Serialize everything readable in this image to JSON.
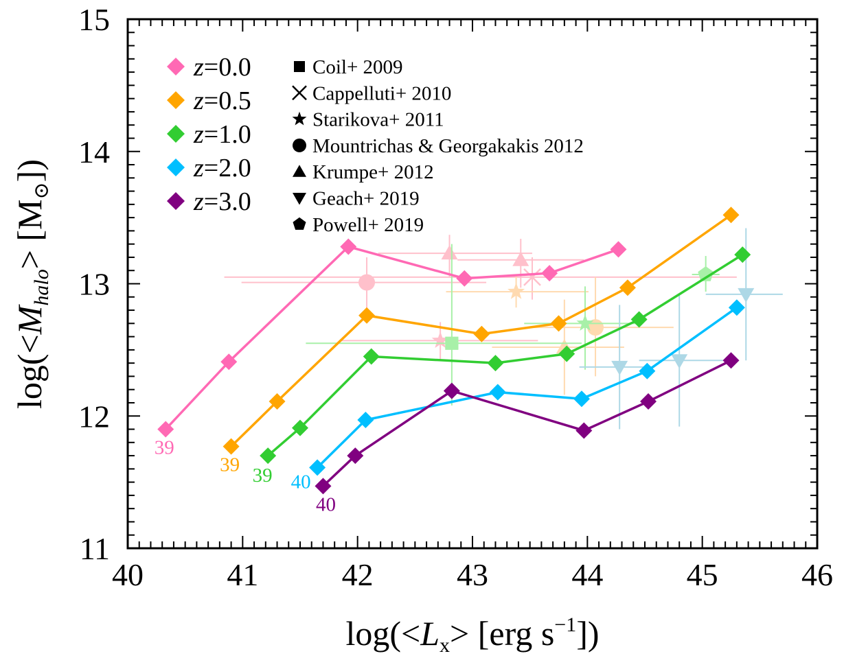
{
  "chart_data": {
    "type": "line",
    "xlabel": {
      "pre": "log(<",
      "var": "L",
      "sub": "x",
      "post1": "> [erg s",
      "sup": "−1",
      "post2": "])"
    },
    "ylabel": {
      "pre": "log(<",
      "var": "M",
      "sub": "halo",
      "post1": "> [M",
      "sun": "⊙",
      "post2": "])"
    },
    "xlim": [
      40,
      46
    ],
    "ylim": [
      11,
      15
    ],
    "xticks": [
      "40",
      "41",
      "42",
      "43",
      "44",
      "45",
      "46"
    ],
    "yticks": [
      "11",
      "12",
      "13",
      "14",
      "15"
    ],
    "series": [
      {
        "name": "z=0.0",
        "z_label": "z",
        "z_value": "=0.0",
        "color": "#FF69B4",
        "faint": "#FFC0CB",
        "start_label": "39",
        "x": [
          40.33,
          40.88,
          41.92,
          42.93,
          43.67,
          44.27
        ],
        "y": [
          11.9,
          12.41,
          13.28,
          13.04,
          13.08,
          13.26
        ]
      },
      {
        "name": "z=0.5",
        "z_label": "z",
        "z_value": "=0.5",
        "color": "#FFA500",
        "faint": "#FFDAB0",
        "start_label": "39",
        "x": [
          40.9,
          41.3,
          42.08,
          43.08,
          43.75,
          44.35,
          45.25
        ],
        "y": [
          11.77,
          12.11,
          12.76,
          12.62,
          12.7,
          12.97,
          13.52
        ]
      },
      {
        "name": "z=1.0",
        "z_label": "z",
        "z_value": "=1.0",
        "color": "#32CD32",
        "faint": "#A8F0A8",
        "start_label": "39",
        "x": [
          41.22,
          41.5,
          42.12,
          43.2,
          43.82,
          44.45,
          45.35
        ],
        "y": [
          11.7,
          11.91,
          12.45,
          12.4,
          12.47,
          12.73,
          13.22
        ]
      },
      {
        "name": "z=2.0",
        "z_label": "z",
        "z_value": "=2.0",
        "color": "#00BFFF",
        "faint": "#ADD8E6",
        "start_label": "40",
        "x": [
          41.65,
          42.07,
          43.22,
          43.95,
          44.52,
          45.3
        ],
        "y": [
          11.61,
          11.97,
          12.18,
          12.13,
          12.34,
          12.82
        ]
      },
      {
        "name": "z=3.0",
        "z_label": "z",
        "z_value": "=3.0",
        "color": "#800080",
        "faint": "#D8A8D8",
        "start_label": "40",
        "x": [
          41.7,
          41.98,
          42.82,
          43.97,
          44.53,
          45.25
        ],
        "y": [
          11.47,
          11.7,
          12.19,
          11.89,
          12.11,
          12.42
        ]
      }
    ],
    "references": [
      {
        "name": "Coil+ 2009",
        "marker": "square"
      },
      {
        "name": "Cappelluti+ 2010",
        "marker": "cross"
      },
      {
        "name": "Starikova+ 2011",
        "marker": "star"
      },
      {
        "name": "Mountrichas & Georgakakis 2012",
        "marker": "circle"
      },
      {
        "name": "Krumpe+ 2012",
        "marker": "triangle-up"
      },
      {
        "name": "Geach+ 2019",
        "marker": "triangle-down"
      },
      {
        "name": "Powell+ 2019",
        "marker": "pentagon"
      }
    ],
    "observations": [
      {
        "marker": "circle",
        "color": "#FFC0CB",
        "x": 42.08,
        "y": 13.01,
        "xmin": 40.99,
        "xmax": 43.12,
        "ymin": 12.8,
        "ymax": 13.2
      },
      {
        "marker": "triangle-up",
        "color": "#FFC0CB",
        "x": 42.8,
        "y": 13.23,
        "xmin": 42.18,
        "xmax": 43.52,
        "ymin": 13.05,
        "ymax": 13.37
      },
      {
        "marker": "triangle-up",
        "color": "#FFC0CB",
        "x": 43.42,
        "y": 13.18,
        "xmin": 42.87,
        "xmax": 43.97,
        "ymin": 12.97,
        "ymax": 13.34
      },
      {
        "marker": "cross",
        "color": "#FFC0CB",
        "x": 43.52,
        "y": 13.05,
        "xmin": 40.84,
        "xmax": 45.3,
        "ymin": 12.88,
        "ymax": 13.2
      },
      {
        "marker": "star",
        "color": "#FFC0CB",
        "x": 42.72,
        "y": 12.57,
        "xmin": 41.86,
        "xmax": 43.57,
        "ymin": 12.42,
        "ymax": 12.71
      },
      {
        "marker": "star",
        "color": "#FFDAB0",
        "x": 43.38,
        "y": 12.94,
        "xmin": 42.77,
        "xmax": 44.01,
        "ymin": 12.82,
        "ymax": 13.07
      },
      {
        "marker": "circle",
        "color": "#FFDAB0",
        "x": 44.07,
        "y": 12.67,
        "xmin": 43.47,
        "xmax": 44.75,
        "ymin": 12.3,
        "ymax": 13.05
      },
      {
        "marker": "triangle-up",
        "color": "#FFDAB0",
        "x": 43.8,
        "y": 12.52,
        "xmin": 43.17,
        "xmax": 44.32,
        "ymin": 12.16,
        "ymax": 12.88
      },
      {
        "marker": "square",
        "color": "#A8F0A8",
        "x": 42.82,
        "y": 12.55,
        "xmin": 41.55,
        "xmax": 43.95,
        "ymin": 12.08,
        "ymax": 13.3
      },
      {
        "marker": "star",
        "color": "#A8F0A8",
        "x": 43.98,
        "y": 12.7,
        "xmin": 43.45,
        "xmax": 44.48,
        "ymin": 12.35,
        "ymax": 12.98
      },
      {
        "marker": "pentagon",
        "color": "#A8F0A8",
        "x": 45.03,
        "y": 13.07,
        "xmin": 44.91,
        "xmax": 45.15,
        "ymin": 12.94,
        "ymax": 13.21
      },
      {
        "marker": "triangle-down",
        "color": "#ADD8E6",
        "x": 44.28,
        "y": 12.37,
        "xmin": 43.93,
        "xmax": 44.58,
        "ymin": 11.9,
        "ymax": 12.84
      },
      {
        "marker": "triangle-down",
        "color": "#ADD8E6",
        "x": 44.8,
        "y": 12.42,
        "xmin": 44.45,
        "xmax": 45.18,
        "ymin": 11.92,
        "ymax": 12.92
      },
      {
        "marker": "triangle-down",
        "color": "#ADD8E6",
        "x": 45.38,
        "y": 12.92,
        "xmin": 45.03,
        "xmax": 45.7,
        "ymin": 12.42,
        "ymax": 13.42
      }
    ]
  }
}
